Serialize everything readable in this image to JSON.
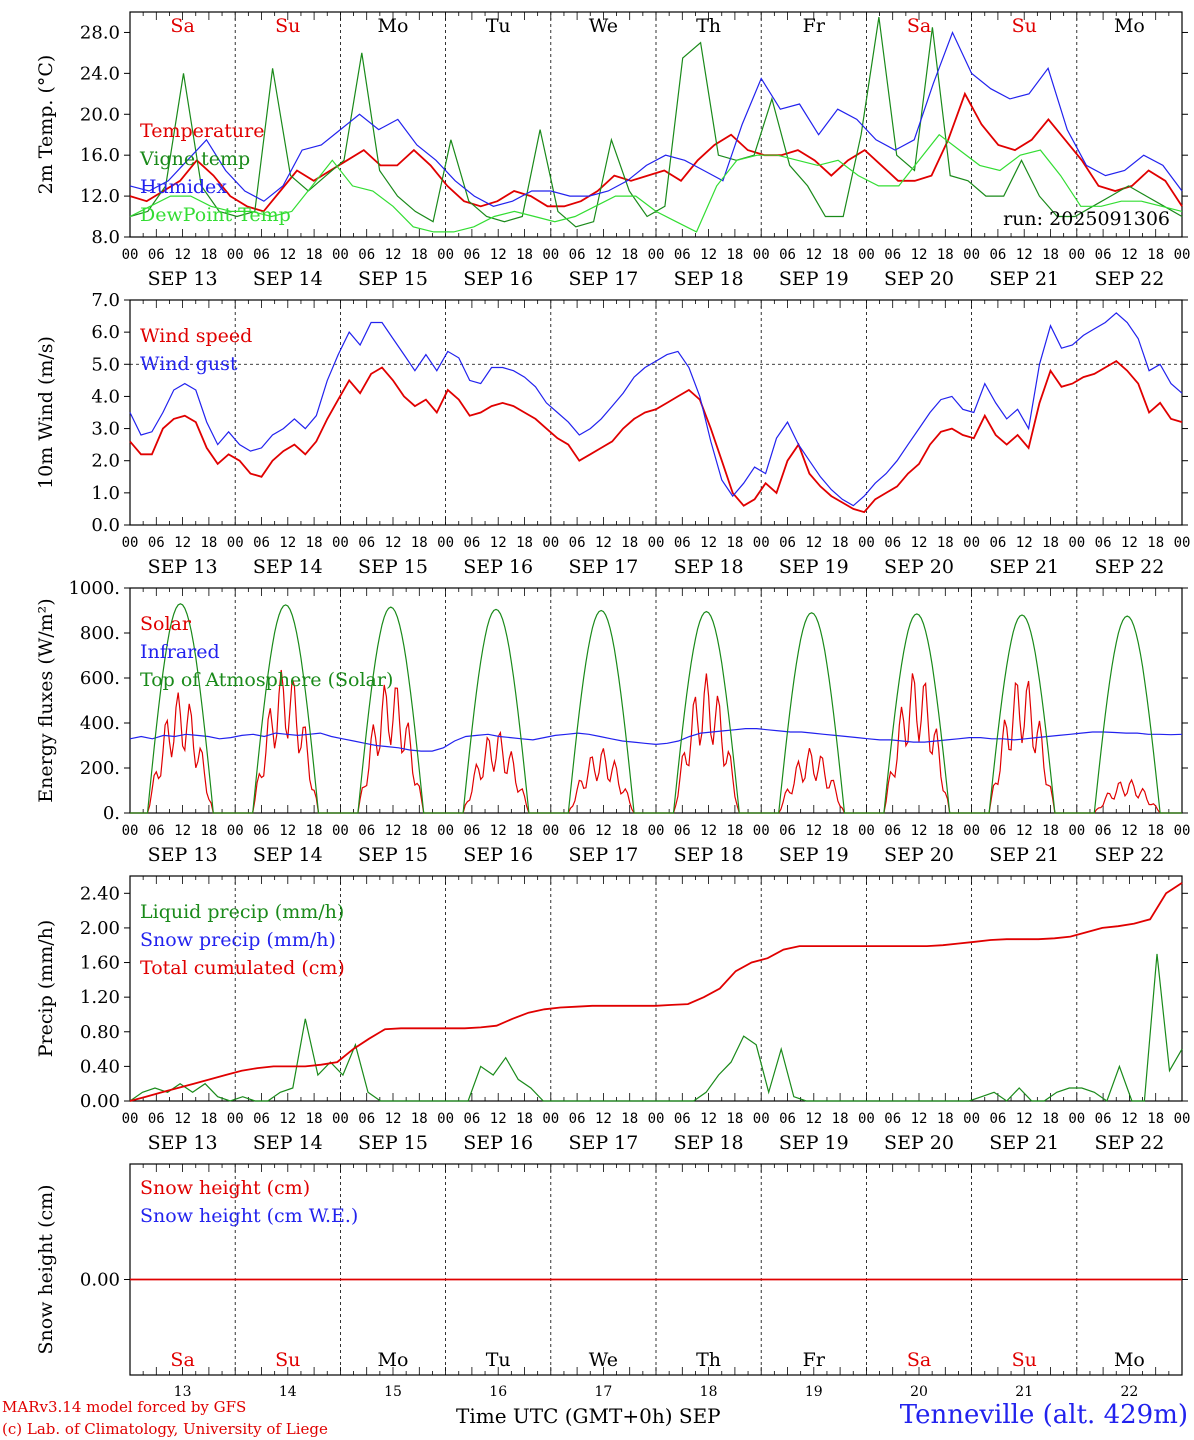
{
  "days": [
    "Sa",
    "Su",
    "Mo",
    "Tu",
    "We",
    "Th",
    "Fr",
    "Sa",
    "Su",
    "Mo"
  ],
  "day_colors": [
    "#e00000",
    "#e00000",
    "#000000",
    "#000000",
    "#000000",
    "#000000",
    "#000000",
    "#e00000",
    "#e00000",
    "#000000"
  ],
  "date_labels": [
    "SEP 13",
    "SEP 14",
    "SEP 15",
    "SEP 16",
    "SEP 17",
    "SEP 18",
    "SEP 19",
    "SEP 20",
    "SEP 21",
    "SEP 22"
  ],
  "hour_ticks": [
    "00",
    "06",
    "12",
    "18"
  ],
  "bottom_day_numbers": [
    "13",
    "14",
    "15",
    "16",
    "17",
    "18",
    "19",
    "20",
    "21",
    "22"
  ],
  "footer": {
    "model": "MARv3.14 model forced by GFS",
    "credit": "(c) Lab. of Climatology, University of Liege",
    "time_axis": "Time UTC (GMT+0h) SEP",
    "station": "Tenneville (alt. 429m)"
  },
  "chart_data": [
    {
      "type": "line",
      "ylabel": "2m Temp. (°C)",
      "ylim": [
        8,
        30
      ],
      "yticks": [
        "8.0",
        "12.0",
        "16.0",
        "20.0",
        "24.0",
        "28.0"
      ],
      "annotation": "run: 2025091306",
      "series": [
        {
          "name": "Temperature",
          "color": "#e00000",
          "values": [
            12.0,
            11.5,
            12.5,
            13.5,
            15.5,
            14.0,
            12.0,
            11.0,
            10.5,
            12.5,
            14.5,
            13.5,
            14.5,
            15.5,
            16.5,
            15.0,
            15.0,
            16.5,
            15.0,
            13.0,
            11.5,
            11.0,
            11.5,
            12.5,
            12.0,
            11.0,
            11.0,
            11.5,
            12.5,
            14.0,
            13.5,
            14.0,
            14.5,
            13.5,
            15.5,
            17.0,
            18.0,
            16.5,
            16.0,
            16.0,
            16.5,
            15.5,
            14.0,
            15.5,
            16.5,
            15.0,
            13.5,
            13.5,
            14.0,
            17.5,
            22.0,
            19.0,
            17.0,
            16.5,
            17.5,
            19.5,
            17.5,
            15.5,
            13.0,
            12.5,
            13.0,
            14.5,
            13.5,
            11.0
          ]
        },
        {
          "name": "Vigne temp",
          "color": "#1a8a1a",
          "values": [
            10.0,
            10.5,
            13.0,
            24.0,
            13.0,
            10.5,
            10.0,
            10.5,
            24.5,
            14.0,
            12.5,
            14.0,
            15.5,
            26.0,
            14.5,
            12.0,
            10.5,
            9.5,
            17.5,
            11.5,
            10.0,
            9.5,
            10.0,
            18.5,
            10.5,
            9.0,
            9.5,
            17.5,
            12.5,
            10.0,
            11.0,
            25.5,
            27.0,
            16.0,
            15.5,
            16.0,
            21.5,
            15.0,
            13.0,
            10.0,
            10.0,
            18.0,
            29.5,
            16.0,
            14.5,
            28.5,
            14.0,
            13.5,
            12.0,
            12.0,
            15.5,
            12.0,
            10.0,
            10.0,
            11.0,
            12.0,
            13.0,
            12.0,
            11.0,
            10.0
          ]
        },
        {
          "name": "Humidex",
          "color": "#2222ee",
          "values": [
            13.0,
            12.5,
            13.5,
            15.5,
            17.5,
            14.5,
            12.5,
            11.5,
            13.0,
            16.5,
            17.0,
            18.5,
            20.0,
            18.5,
            19.5,
            17.0,
            15.5,
            13.5,
            12.0,
            11.0,
            11.5,
            12.5,
            12.5,
            12.0,
            12.0,
            12.5,
            13.5,
            15.0,
            16.0,
            15.5,
            14.5,
            13.5,
            19.0,
            23.5,
            20.5,
            21.0,
            18.0,
            20.5,
            19.5,
            17.5,
            16.5,
            17.5,
            23.0,
            28.0,
            24.0,
            22.5,
            21.5,
            22.0,
            24.5,
            18.5,
            15.0,
            14.0,
            14.5,
            16.0,
            15.0,
            12.5
          ]
        },
        {
          "name": "DewPoint Temp",
          "color": "#33dd33",
          "values": [
            10.0,
            11.0,
            12.0,
            12.0,
            11.0,
            10.5,
            10.5,
            10.0,
            10.5,
            13.0,
            15.5,
            13.0,
            12.5,
            11.0,
            9.0,
            8.5,
            8.5,
            9.0,
            10.0,
            10.5,
            10.0,
            9.5,
            10.0,
            11.0,
            12.0,
            12.0,
            10.5,
            9.5,
            8.5,
            13.0,
            15.5,
            16.0,
            16.0,
            15.5,
            15.0,
            15.5,
            14.0,
            13.0,
            13.0,
            15.5,
            18.0,
            16.5,
            15.0,
            14.5,
            16.0,
            16.5,
            14.0,
            11.0,
            11.0,
            11.5,
            11.5,
            11.0,
            10.5
          ]
        }
      ]
    },
    {
      "type": "line",
      "ylabel": "10m Wind (m/s)",
      "ylim": [
        0,
        7
      ],
      "yticks": [
        "0.0",
        "1.0",
        "2.0",
        "3.0",
        "4.0",
        "5.0",
        "6.0",
        "7.0"
      ],
      "series": [
        {
          "name": "Wind speed",
          "color": "#e00000",
          "values": [
            2.6,
            2.2,
            2.2,
            3.0,
            3.3,
            3.4,
            3.2,
            2.4,
            1.9,
            2.2,
            2.0,
            1.6,
            1.5,
            2.0,
            2.3,
            2.5,
            2.2,
            2.6,
            3.3,
            3.9,
            4.5,
            4.1,
            4.7,
            4.9,
            4.5,
            4.0,
            3.7,
            3.9,
            3.5,
            4.2,
            3.9,
            3.4,
            3.5,
            3.7,
            3.8,
            3.7,
            3.5,
            3.3,
            3.0,
            2.7,
            2.5,
            2.0,
            2.2,
            2.4,
            2.6,
            3.0,
            3.3,
            3.5,
            3.6,
            3.8,
            4.0,
            4.2,
            3.9,
            3.0,
            2.0,
            1.0,
            0.6,
            0.8,
            1.3,
            1.0,
            2.0,
            2.5,
            1.6,
            1.2,
            0.9,
            0.7,
            0.5,
            0.4,
            0.8,
            1.0,
            1.2,
            1.6,
            1.9,
            2.5,
            2.9,
            3.0,
            2.8,
            2.7,
            3.4,
            2.8,
            2.5,
            2.8,
            2.4,
            3.8,
            4.8,
            4.3,
            4.4,
            4.6,
            4.7,
            4.9,
            5.1,
            4.8,
            4.4,
            3.5,
            3.8,
            3.3,
            3.2
          ]
        },
        {
          "name": "Wind gust",
          "color": "#2222ee",
          "values": [
            3.5,
            2.8,
            2.9,
            3.5,
            4.2,
            4.4,
            4.2,
            3.2,
            2.5,
            2.9,
            2.5,
            2.3,
            2.4,
            2.8,
            3.0,
            3.3,
            3.0,
            3.4,
            4.5,
            5.3,
            6.0,
            5.6,
            6.3,
            6.3,
            5.8,
            5.3,
            4.8,
            5.3,
            4.8,
            5.4,
            5.2,
            4.5,
            4.4,
            4.9,
            4.9,
            4.8,
            4.6,
            4.3,
            3.8,
            3.5,
            3.2,
            2.8,
            3.0,
            3.3,
            3.7,
            4.1,
            4.6,
            4.9,
            5.1,
            5.3,
            5.4,
            4.9,
            4.0,
            2.6,
            1.4,
            0.9,
            1.3,
            1.8,
            1.6,
            2.7,
            3.2,
            2.5,
            2.0,
            1.5,
            1.1,
            0.8,
            0.6,
            0.9,
            1.3,
            1.6,
            2.0,
            2.5,
            3.0,
            3.5,
            3.9,
            4.0,
            3.6,
            3.5,
            4.4,
            3.8,
            3.3,
            3.6,
            3.0,
            5.0,
            6.2,
            5.5,
            5.6,
            5.9,
            6.1,
            6.3,
            6.6,
            6.3,
            5.8,
            4.8,
            5.0,
            4.4,
            4.1
          ]
        }
      ],
      "reference_line": 5.0
    },
    {
      "type": "line",
      "ylabel": "Energy fluxes (W/m²)",
      "ylim": [
        0,
        1000
      ],
      "yticks": [
        "0.",
        "200.",
        "400.",
        "600.",
        "800.",
        "1000."
      ],
      "series": [
        {
          "name": "Solar",
          "color": "#e00000",
          "peaks": [
            540,
            650,
            600,
            370,
            290,
            620,
            290,
            640,
            620,
            150
          ]
        },
        {
          "name": "Infrared",
          "color": "#2222ee",
          "values": [
            330,
            340,
            330,
            345,
            340,
            350,
            345,
            340,
            330,
            335,
            345,
            350,
            340,
            355,
            350,
            345,
            350,
            355,
            340,
            330,
            320,
            310,
            300,
            295,
            290,
            280,
            275,
            275,
            290,
            320,
            340,
            345,
            350,
            340,
            335,
            330,
            325,
            335,
            345,
            350,
            355,
            350,
            340,
            330,
            320,
            315,
            310,
            305,
            310,
            320,
            340,
            355,
            360,
            365,
            370,
            375,
            375,
            370,
            365,
            360,
            360,
            355,
            350,
            345,
            340,
            335,
            330,
            325,
            325,
            320,
            315,
            315,
            320,
            325,
            330,
            335,
            335,
            330,
            330,
            325,
            330,
            335,
            340,
            345,
            350,
            355,
            360,
            360,
            358,
            355,
            355,
            350,
            350,
            348,
            350
          ]
        },
        {
          "name": "Top of Atmosphere (Solar)",
          "color": "#1a8a1a",
          "peaks": [
            930,
            925,
            915,
            905,
            900,
            895,
            890,
            885,
            880,
            875
          ]
        }
      ]
    },
    {
      "type": "line",
      "ylabel": "Precip (mm/h)",
      "ylim": [
        0,
        2.6
      ],
      "yticks": [
        "0.00",
        "0.40",
        "0.80",
        "1.20",
        "1.60",
        "2.00",
        "2.40"
      ],
      "series": [
        {
          "name": "Liquid precip (mm/h)",
          "color": "#1a8a1a",
          "values": [
            0.0,
            0.1,
            0.15,
            0.1,
            0.2,
            0.1,
            0.2,
            0.05,
            0.0,
            0.05,
            0.0,
            0.0,
            0.1,
            0.15,
            0.95,
            0.3,
            0.45,
            0.3,
            0.65,
            0.1,
            0.0,
            0.0,
            0.0,
            0.0,
            0.0,
            0.0,
            0.0,
            0.0,
            0.4,
            0.3,
            0.5,
            0.25,
            0.15,
            0.0,
            0.0,
            0.0,
            0.0,
            0.0,
            0.0,
            0.0,
            0.0,
            0.0,
            0.0,
            0.0,
            0.0,
            0.0,
            0.1,
            0.3,
            0.45,
            0.75,
            0.65,
            0.1,
            0.6,
            0.05,
            0.0,
            0.0,
            0.0,
            0.0,
            0.0,
            0.0,
            0.0,
            0.0,
            0.0,
            0.0,
            0.0,
            0.0,
            0.0,
            0.0,
            0.05,
            0.1,
            0.0,
            0.15,
            0.0,
            0.0,
            0.1,
            0.15,
            0.15,
            0.1,
            0.0,
            0.4,
            0.0,
            0.0,
            1.7,
            0.35,
            0.6
          ]
        },
        {
          "name": "Snow precip (mm/h)",
          "color": "#2222ee",
          "values": []
        },
        {
          "name": "Total cumulated (cm)",
          "color": "#e00000",
          "values": [
            0.0,
            0.05,
            0.1,
            0.15,
            0.2,
            0.25,
            0.3,
            0.35,
            0.38,
            0.4,
            0.4,
            0.4,
            0.42,
            0.45,
            0.6,
            0.72,
            0.83,
            0.84,
            0.84,
            0.84,
            0.84,
            0.84,
            0.85,
            0.87,
            0.95,
            1.02,
            1.06,
            1.08,
            1.09,
            1.1,
            1.1,
            1.1,
            1.1,
            1.1,
            1.11,
            1.12,
            1.2,
            1.3,
            1.5,
            1.6,
            1.65,
            1.75,
            1.79,
            1.79,
            1.79,
            1.79,
            1.79,
            1.79,
            1.79,
            1.79,
            1.79,
            1.8,
            1.82,
            1.84,
            1.86,
            1.87,
            1.87,
            1.87,
            1.88,
            1.9,
            1.95,
            2.0,
            2.02,
            2.05,
            2.1,
            2.4,
            2.52
          ]
        }
      ]
    },
    {
      "type": "line",
      "ylabel": "Snow height (cm)",
      "yticks": [
        "0.00"
      ],
      "series": [
        {
          "name": "Snow height (cm)",
          "color": "#e00000",
          "values": [
            0,
            0
          ]
        },
        {
          "name": "Snow height (cm W.E.)",
          "color": "#2222ee",
          "values": []
        }
      ]
    }
  ]
}
